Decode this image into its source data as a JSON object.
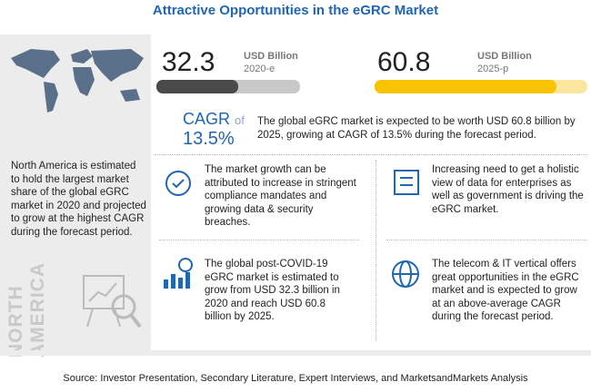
{
  "title": "Attractive Opportunities in the eGRC Market",
  "left_panel": {
    "text": "North America is estimated to hold the largest market share of the global eGRC market in 2020 and projected to grow at the highest CAGR during the forecast period.",
    "region": "NORTH AMERICA"
  },
  "stats": [
    {
      "value": "32.3",
      "unit": "USD Billion",
      "year": "2020-e"
    },
    {
      "value": "60.8",
      "unit": "USD Billion",
      "year": "2025-p"
    }
  ],
  "cagr": {
    "label": "CAGR",
    "of": "of",
    "value": "13.5%"
  },
  "summary": "The global eGRC market is expected to be worth USD 60.8 billion by 2025, growing at CAGR of 13.5% during the forecast period.",
  "highlights": [
    "The market growth can be attributed to increase in stringent compliance mandates and growing data & security breaches.",
    "Increasing need to get a holistic view of data for enterprises as well as government is driving the eGRC market.",
    "The global post-COVID-19 eGRC market is estimated to grow from USD 32.3 billion in 2020 and reach USD 60.8 billion by 2025.",
    "The telecom & IT vertical offers great opportunities in the eGRC market and is expected to grow at an above-average CAGR during the forecast period."
  ],
  "source": "Source: Investor Presentation, Secondary Literature, Expert Interviews, and MarketsandMarkets Analysis"
}
